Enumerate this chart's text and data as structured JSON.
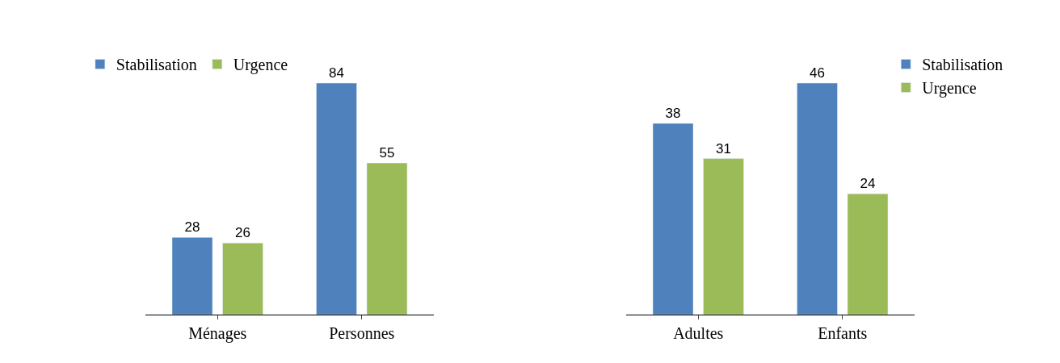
{
  "chart_data": [
    {
      "type": "bar",
      "categories": [
        "Ménages",
        "Personnes"
      ],
      "series": [
        {
          "name": "Stabilisation",
          "color": "#4f81bd",
          "values": [
            28,
            84
          ]
        },
        {
          "name": "Urgence",
          "color": "#9bbb59",
          "values": [
            26,
            55
          ]
        }
      ],
      "data_labels": true,
      "legend": "top left",
      "tick_labels": "x"
    },
    {
      "type": "bar",
      "categories": [
        "Adultes",
        "Enfants"
      ],
      "series": [
        {
          "name": "Stabilisation",
          "color": "#4f81bd",
          "values": [
            38,
            46
          ]
        },
        {
          "name": "Urgence",
          "color": "#9bbb59",
          "values": [
            31,
            24
          ]
        }
      ],
      "data_labels": true,
      "legend": "top right",
      "tick_labels": "x"
    }
  ]
}
